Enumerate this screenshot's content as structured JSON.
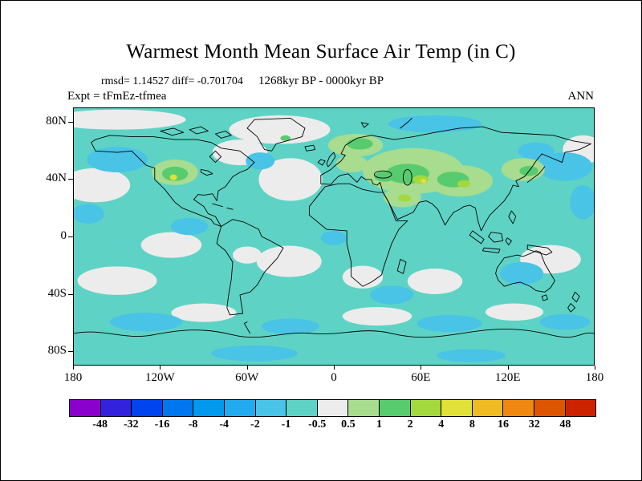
{
  "header": {
    "title": "Warmest Month Mean Surface Air Temp (in C)",
    "stats_line": "rmsd= 1.14527 diff= -0.701704",
    "period_line": "1268kyr BP - 0000kyr BP",
    "experiment_label": "Expt = tFmEz-tfmea",
    "season_label": "ANN"
  },
  "chart_data": {
    "type": "heatmap",
    "title": "Warmest Month Mean Surface Air Temp (in C)",
    "statistics": {
      "rmsd": 1.14527,
      "diff": -0.701704
    },
    "comparison": "1268kyr BP - 0000kyr BP",
    "experiment": "tFmEz-tfmea",
    "season": "ANN",
    "projection": "equirectangular world map, lon -180..180, lat -90..90",
    "x_axis": {
      "tick_labels": [
        "180",
        "120W",
        "60W",
        "0",
        "60E",
        "120E",
        "180"
      ],
      "lon_values": [
        -180,
        -120,
        -60,
        0,
        60,
        120,
        180
      ]
    },
    "y_axis": {
      "tick_labels": [
        "80N",
        "40N",
        "0",
        "40S",
        "80S"
      ],
      "lat_values": [
        80,
        40,
        0,
        -40,
        -80
      ]
    },
    "colorbar": {
      "units": "C",
      "boundary_labels": [
        "-48",
        "-32",
        "-16",
        "-8",
        "-4",
        "-2",
        "-1",
        "-0.5",
        "0.5",
        "1",
        "2",
        "4",
        "8",
        "16",
        "32",
        "48"
      ],
      "colors": [
        "#8a00cc",
        "#3322dd",
        "#0044ee",
        "#0077ee",
        "#0099ee",
        "#22aaee",
        "#49c3e6",
        "#5ed3c5",
        "#ececec",
        "#a8dc8e",
        "#58cb6e",
        "#a4d93e",
        "#e0e23a",
        "#eebb22",
        "#ee8811",
        "#dd5500",
        "#cc2200"
      ],
      "map_fill_bins": {
        "teal": "-1 to -0.5",
        "blue": "-2 to -1",
        "white": "-0.5 to 0.5",
        "light_green": "0.5 to 1",
        "green": "1 to 2",
        "yellow_green": "2 to 4",
        "yellow": "4 to 8"
      }
    },
    "field_summary": {
      "dominant_bin": "-1 to -0.5 C (teal) over most oceans and land",
      "warm_regions": [
        "western North America (local +4 to +8)",
        "Scandinavia and Baltic",
        "eastern Europe through central Asia and Iran (up to +2 to +8 locally)",
        "Middle East",
        "northeast Asia / Japan",
        "small spot on Greenland"
      ],
      "near_zero_regions": [
        "Arctic near North America",
        "North Atlantic",
        "central North Pacific",
        "eastern tropical Pacific",
        "South Atlantic",
        "southern Africa",
        "southern Indian Ocean",
        "Coral Sea",
        "Southern Ocean patches"
      ],
      "cooler_regions": [
        "northwest Pacific",
        "Gulf of Alaska",
        "Arctic above Siberia",
        "Australia interior",
        "Southern Ocean near Antarctica",
        "southeast of Africa"
      ]
    }
  }
}
